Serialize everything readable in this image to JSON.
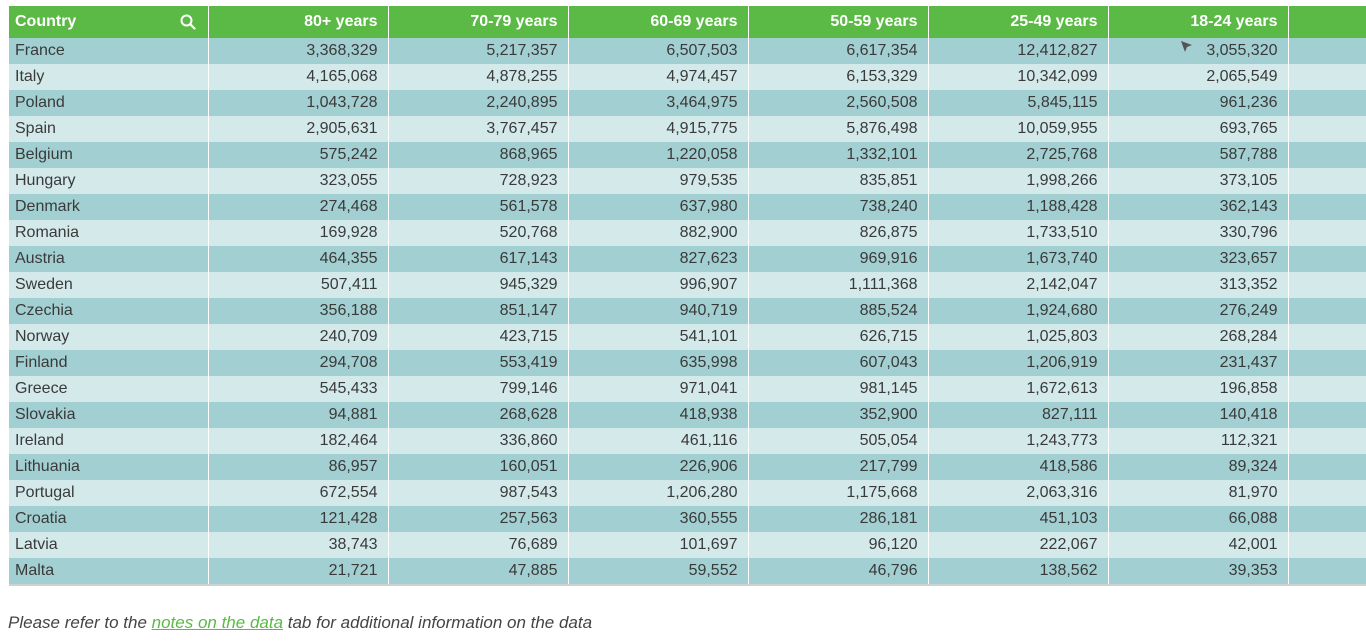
{
  "table": {
    "headers": [
      "Country",
      "80+ years",
      "70-79 years",
      "60-69 years",
      "50-59 years",
      "25-49 years",
      "18-24 years"
    ],
    "search_icon": "search-icon",
    "rows": [
      [
        "France",
        "3,368,329",
        "5,217,357",
        "6,507,503",
        "6,617,354",
        "12,412,827",
        "3,055,320"
      ],
      [
        "Italy",
        "4,165,068",
        "4,878,255",
        "4,974,457",
        "6,153,329",
        "10,342,099",
        "2,065,549"
      ],
      [
        "Poland",
        "1,043,728",
        "2,240,895",
        "3,464,975",
        "2,560,508",
        "5,845,115",
        "961,236"
      ],
      [
        "Spain",
        "2,905,631",
        "3,767,457",
        "4,915,775",
        "5,876,498",
        "10,059,955",
        "693,765"
      ],
      [
        "Belgium",
        "575,242",
        "868,965",
        "1,220,058",
        "1,332,101",
        "2,725,768",
        "587,788"
      ],
      [
        "Hungary",
        "323,055",
        "728,923",
        "979,535",
        "835,851",
        "1,998,266",
        "373,105"
      ],
      [
        "Denmark",
        "274,468",
        "561,578",
        "637,980",
        "738,240",
        "1,188,428",
        "362,143"
      ],
      [
        "Romania",
        "169,928",
        "520,768",
        "882,900",
        "826,875",
        "1,733,510",
        "330,796"
      ],
      [
        "Austria",
        "464,355",
        "617,143",
        "827,623",
        "969,916",
        "1,673,740",
        "323,657"
      ],
      [
        "Sweden",
        "507,411",
        "945,329",
        "996,907",
        "1,111,368",
        "2,142,047",
        "313,352"
      ],
      [
        "Czechia",
        "356,188",
        "851,147",
        "940,719",
        "885,524",
        "1,924,680",
        "276,249"
      ],
      [
        "Norway",
        "240,709",
        "423,715",
        "541,101",
        "626,715",
        "1,025,803",
        "268,284"
      ],
      [
        "Finland",
        "294,708",
        "553,419",
        "635,998",
        "607,043",
        "1,206,919",
        "231,437"
      ],
      [
        "Greece",
        "545,433",
        "799,146",
        "971,041",
        "981,145",
        "1,672,613",
        "196,858"
      ],
      [
        "Slovakia",
        "94,881",
        "268,628",
        "418,938",
        "352,900",
        "827,111",
        "140,418"
      ],
      [
        "Ireland",
        "182,464",
        "336,860",
        "461,116",
        "505,054",
        "1,243,773",
        "112,321"
      ],
      [
        "Lithuania",
        "86,957",
        "160,051",
        "226,906",
        "217,799",
        "418,586",
        "89,324"
      ],
      [
        "Portugal",
        "672,554",
        "987,543",
        "1,206,280",
        "1,175,668",
        "2,063,316",
        "81,970"
      ],
      [
        "Croatia",
        "121,428",
        "257,563",
        "360,555",
        "286,181",
        "451,103",
        "66,088"
      ],
      [
        "Latvia",
        "38,743",
        "76,689",
        "101,697",
        "96,120",
        "222,067",
        "42,001"
      ],
      [
        "Malta",
        "21,721",
        "47,885",
        "59,552",
        "46,796",
        "138,562",
        "39,353"
      ]
    ]
  },
  "note": {
    "prefix": "Please refer to the ",
    "link": "notes on the data",
    "suffix": " tab for additional information on the data"
  },
  "colors": {
    "header_bg": "#5bb946",
    "row_odd": "#a2cfd1",
    "row_even": "#d3e9ea",
    "link": "#5bb946"
  }
}
